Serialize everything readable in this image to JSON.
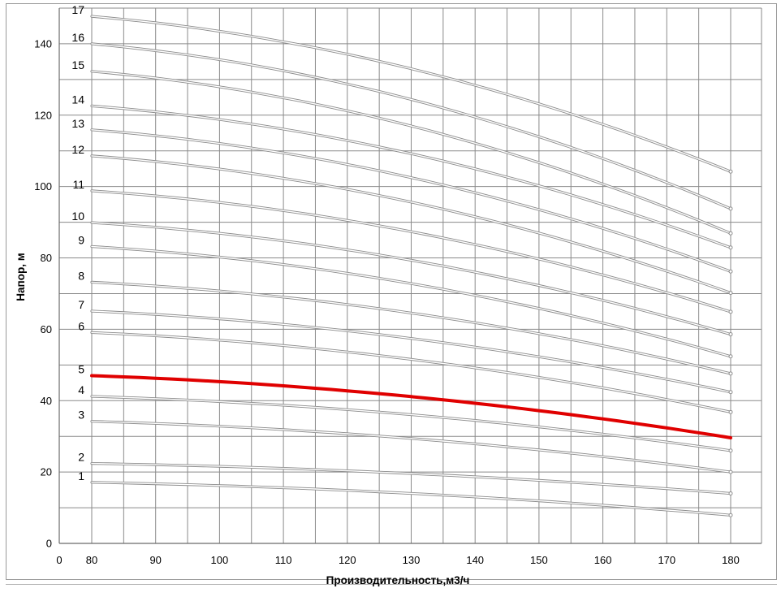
{
  "chart_data": {
    "type": "line",
    "xlabel": "Производительность,м3/ч",
    "ylabel": "Напор, м",
    "xlim": [
      0,
      180
    ],
    "ylim": [
      0,
      150
    ],
    "x_ticks": [
      0,
      80,
      90,
      100,
      110,
      120,
      130,
      140,
      150,
      160,
      170,
      180
    ],
    "y_ticks": [
      0,
      20,
      40,
      60,
      80,
      100,
      120,
      140
    ],
    "grid": true,
    "legend": "none",
    "colors": {
      "curve": "#8c8c8c",
      "highlight": "#e00000",
      "grid": "#8a8a8a"
    },
    "highlight_series": "5",
    "x": [
      80,
      180
    ],
    "series": [
      {
        "name": "1",
        "values": [
          17.1,
          7.9
        ]
      },
      {
        "name": "2",
        "values": [
          22.4,
          14.0
        ]
      },
      {
        "name": "3",
        "values": [
          34.2,
          20.0
        ]
      },
      {
        "name": "4",
        "values": [
          41.2,
          26.0
        ]
      },
      {
        "name": "5",
        "values": [
          47.0,
          29.6
        ]
      },
      {
        "name": "6",
        "values": [
          59.1,
          36.8
        ]
      },
      {
        "name": "7",
        "values": [
          65.1,
          42.4
        ]
      },
      {
        "name": "8",
        "values": [
          73.2,
          47.6
        ]
      },
      {
        "name": "9",
        "values": [
          83.2,
          52.4
        ]
      },
      {
        "name": "10",
        "values": [
          89.9,
          58.6
        ]
      },
      {
        "name": "11",
        "values": [
          98.8,
          64.9
        ]
      },
      {
        "name": "12",
        "values": [
          108.6,
          70.2
        ]
      },
      {
        "name": "13",
        "values": [
          115.9,
          76.2
        ]
      },
      {
        "name": "14",
        "values": [
          122.6,
          82.9
        ]
      },
      {
        "name": "15",
        "values": [
          132.3,
          86.9
        ]
      },
      {
        "name": "16",
        "values": [
          140.0,
          93.8
        ]
      },
      {
        "name": "17",
        "values": [
          147.7,
          104.2
        ]
      }
    ]
  }
}
